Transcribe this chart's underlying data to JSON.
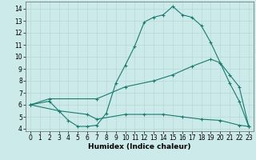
{
  "xlabel": "Humidex (Indice chaleur)",
  "background_color": "#cceaea",
  "line_color": "#1a7a6e",
  "xlim": [
    -0.5,
    23.5
  ],
  "ylim": [
    3.8,
    14.6
  ],
  "yticks": [
    4,
    5,
    6,
    7,
    8,
    9,
    10,
    11,
    12,
    13,
    14
  ],
  "xticks": [
    0,
    1,
    2,
    3,
    4,
    5,
    6,
    7,
    8,
    9,
    10,
    11,
    12,
    13,
    14,
    15,
    16,
    17,
    18,
    19,
    20,
    21,
    22,
    23
  ],
  "line1_x": [
    0,
    2,
    3,
    4,
    5,
    6,
    7,
    8,
    9,
    10,
    11,
    12,
    13,
    14,
    15,
    16,
    17,
    18,
    19,
    20,
    21,
    22,
    23
  ],
  "line1_y": [
    6.0,
    6.3,
    5.5,
    4.7,
    4.2,
    4.2,
    4.3,
    5.3,
    7.8,
    9.3,
    10.9,
    12.9,
    13.3,
    13.5,
    14.2,
    13.5,
    13.3,
    12.6,
    11.2,
    9.5,
    7.8,
    6.3,
    4.2
  ],
  "line2_x": [
    0,
    2,
    7,
    10,
    13,
    15,
    17,
    19,
    20,
    21,
    22,
    23
  ],
  "line2_y": [
    6.0,
    6.5,
    6.5,
    7.5,
    8.0,
    8.5,
    9.2,
    9.8,
    9.5,
    8.5,
    7.5,
    4.2
  ],
  "line3_x": [
    0,
    3,
    6,
    7,
    10,
    12,
    14,
    16,
    18,
    20,
    22,
    23
  ],
  "line3_y": [
    6.0,
    5.5,
    5.2,
    4.8,
    5.2,
    5.2,
    5.2,
    5.0,
    4.8,
    4.7,
    4.3,
    4.2
  ],
  "grid_color": "#b8d8d8",
  "xlabel_fontsize": 6.5,
  "tick_fontsize": 5.5
}
